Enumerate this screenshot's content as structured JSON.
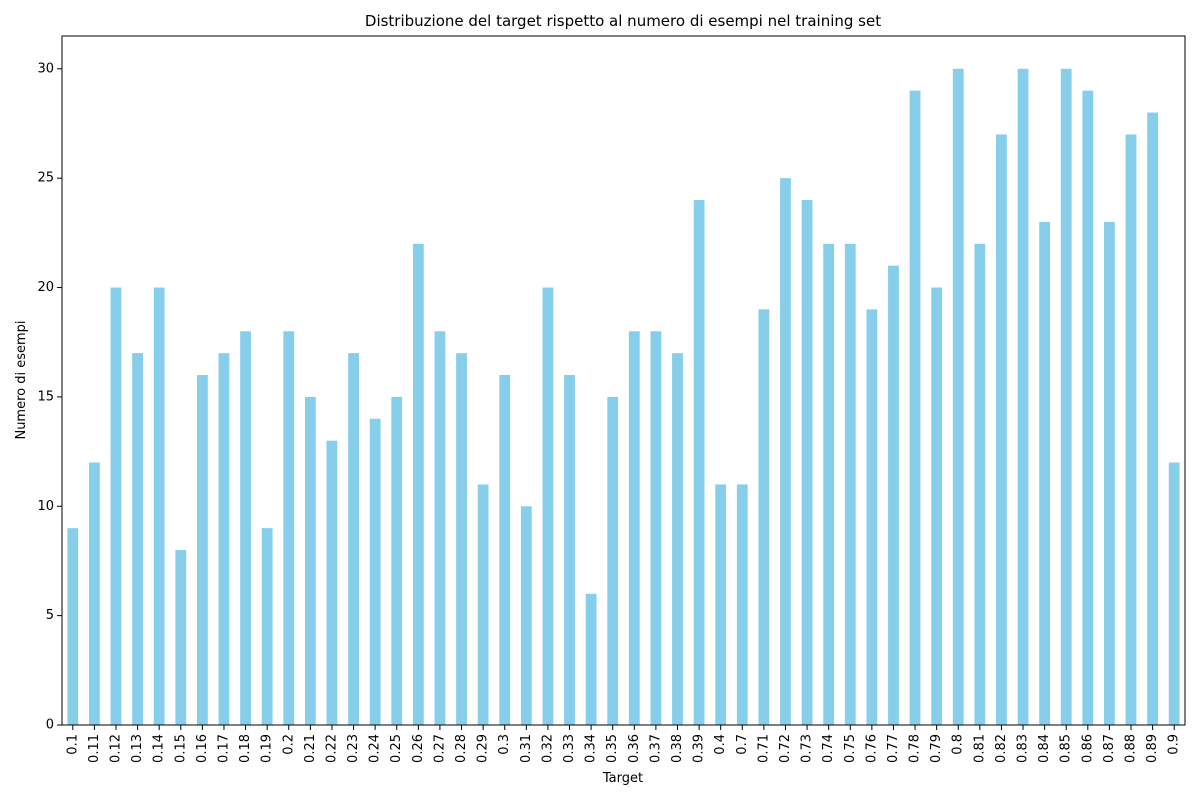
{
  "chart_data": {
    "type": "bar",
    "title": "Distribuzione del target rispetto al numero di esempi nel training set",
    "xlabel": "Target",
    "ylabel": "Numero di esempi",
    "ylim": [
      0,
      31.5
    ],
    "yticks": [
      0,
      5,
      10,
      15,
      20,
      25,
      30
    ],
    "grid": false,
    "bar_color": "#87ceeb",
    "categories": [
      "0.1",
      "0.11",
      "0.12",
      "0.13",
      "0.14",
      "0.15",
      "0.16",
      "0.17",
      "0.18",
      "0.19",
      "0.2",
      "0.21",
      "0.22",
      "0.23",
      "0.24",
      "0.25",
      "0.26",
      "0.27",
      "0.28",
      "0.29",
      "0.3",
      "0.31",
      "0.32",
      "0.33",
      "0.34",
      "0.35",
      "0.36",
      "0.37",
      "0.38",
      "0.39",
      "0.4",
      "0.7",
      "0.71",
      "0.72",
      "0.73",
      "0.74",
      "0.75",
      "0.76",
      "0.77",
      "0.78",
      "0.79",
      "0.8",
      "0.81",
      "0.82",
      "0.83",
      "0.84",
      "0.85",
      "0.86",
      "0.87",
      "0.88",
      "0.89",
      "0.9"
    ],
    "values": [
      9,
      12,
      20,
      17,
      20,
      8,
      16,
      17,
      18,
      9,
      18,
      15,
      13,
      17,
      14,
      15,
      22,
      18,
      17,
      11,
      16,
      10,
      20,
      16,
      6,
      15,
      18,
      18,
      17,
      24,
      11,
      11,
      19,
      25,
      24,
      22,
      22,
      19,
      21,
      29,
      20,
      30,
      22,
      27,
      30,
      23,
      30,
      29,
      23,
      27,
      28,
      12
    ]
  }
}
